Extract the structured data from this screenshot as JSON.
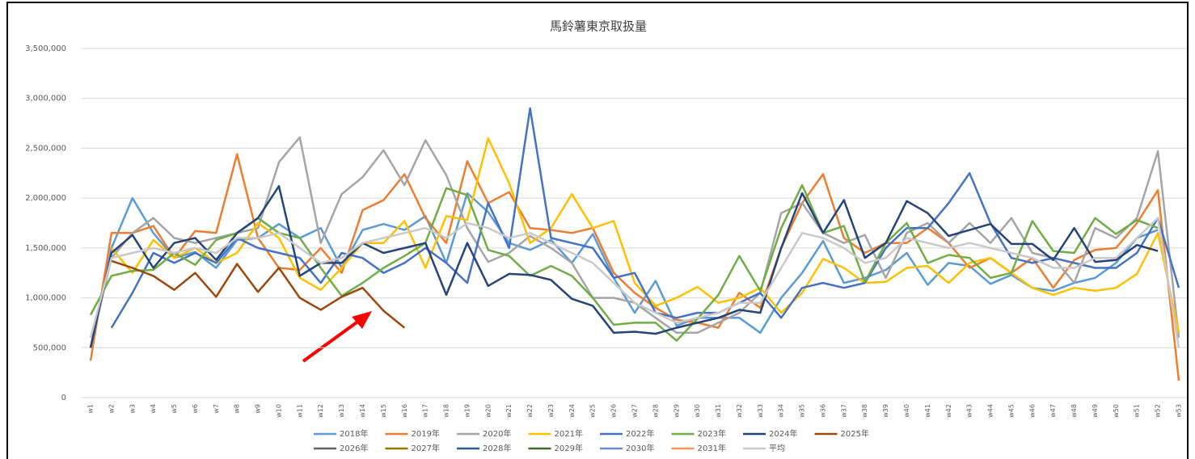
{
  "chart_data": {
    "type": "line",
    "title": "馬鈴薯東京取扱量",
    "categories": [
      "w1",
      "w2",
      "w3",
      "w4",
      "w5",
      "w6",
      "w7",
      "w8",
      "w9",
      "w10",
      "w11",
      "w12",
      "w13",
      "w14",
      "w15",
      "w16",
      "w17",
      "w18",
      "w19",
      "w20",
      "w21",
      "w22",
      "w23",
      "w24",
      "w25",
      "w26",
      "w27",
      "w28",
      "w29",
      "w30",
      "w31",
      "w32",
      "w33",
      "w34",
      "w35",
      "w36",
      "w37",
      "w38",
      "w39",
      "w40",
      "w41",
      "w42",
      "w43",
      "w44",
      "w45",
      "w46",
      "w47",
      "w48",
      "w49",
      "w50",
      "w51",
      "w52",
      "w53"
    ],
    "ylim": [
      0,
      3500000
    ],
    "yticks": [
      0,
      {
        "value": 500000,
        "label": "500,000"
      },
      {
        "value": 1000000,
        "label": "1,000,000"
      },
      {
        "value": 1500000,
        "label": "1,500,000"
      },
      {
        "value": 2000000,
        "label": "2,000,000"
      },
      {
        "value": 2500000,
        "label": "2,500,000"
      },
      {
        "value": 3000000,
        "label": "3,000,000"
      },
      {
        "value": 3500000,
        "label": "3,500,000"
      }
    ],
    "grid": true,
    "legend": "bottom",
    "series": [
      {
        "name": "2018年",
        "color": "#5b9bd5",
        "values": [
          500000,
          1500000,
          2000000,
          1650000,
          1400000,
          1460000,
          1300000,
          1580000,
          1600000,
          1740000,
          1600000,
          1700000,
          1300000,
          1680000,
          1740000,
          1680000,
          1820000,
          1350000,
          2050000,
          1860000,
          1550000,
          1480000,
          1580000,
          1350000,
          1640000,
          1200000,
          850000,
          1170000,
          720000,
          800000,
          800000,
          800000,
          650000,
          1000000,
          1250000,
          1570000,
          1150000,
          1200000,
          1280000,
          1450000,
          1130000,
          1350000,
          1320000,
          1140000,
          1230000,
          1100000,
          1070000,
          1150000,
          1200000,
          1350000,
          1600000,
          1680000,
          null
        ]
      },
      {
        "name": "2019年",
        "color": "#ed7d31",
        "values": [
          370000,
          1650000,
          1650000,
          1720000,
          1400000,
          1670000,
          1650000,
          2440000,
          1600000,
          1300000,
          1280000,
          1500000,
          1250000,
          1880000,
          1980000,
          2240000,
          1800000,
          1550000,
          2370000,
          1950000,
          2060000,
          1700000,
          1680000,
          1650000,
          1700000,
          1250000,
          1050000,
          900000,
          780000,
          750000,
          700000,
          1050000,
          900000,
          1500000,
          1950000,
          2240000,
          1600000,
          1450000,
          1550000,
          1550000,
          1700000,
          1550000,
          1300000,
          1400000,
          1250000,
          1400000,
          1100000,
          1380000,
          1480000,
          1500000,
          1750000,
          2080000,
          170000
        ]
      },
      {
        "name": "2020年",
        "color": "#a5a5a5",
        "values": [
          500000,
          1400000,
          1650000,
          1800000,
          1600000,
          1550000,
          1600000,
          1650000,
          1700000,
          2360000,
          2610000,
          1550000,
          2040000,
          2210000,
          2480000,
          2130000,
          2580000,
          2230000,
          1700000,
          1360000,
          1450000,
          1620000,
          1500000,
          1350000,
          1000000,
          1000000,
          950000,
          800000,
          650000,
          650000,
          750000,
          850000,
          1050000,
          1850000,
          1950000,
          1650000,
          1550000,
          1630000,
          1200000,
          1650000,
          1750000,
          1550000,
          1750000,
          1550000,
          1800000,
          1450000,
          1400000,
          1150000,
          1700000,
          1600000,
          1800000,
          2470000,
          600000
        ]
      },
      {
        "name": "2021年",
        "color": "#ffc000",
        "values": [
          null,
          1500000,
          1250000,
          1580000,
          1400000,
          1500000,
          1350000,
          1450000,
          1750000,
          1600000,
          1200000,
          1080000,
          1300000,
          1550000,
          1550000,
          1770000,
          1300000,
          1820000,
          1780000,
          2600000,
          2150000,
          1550000,
          1700000,
          2040000,
          1700000,
          1770000,
          1150000,
          920000,
          1000000,
          1110000,
          950000,
          1000000,
          1100000,
          850000,
          1050000,
          1390000,
          1300000,
          1150000,
          1160000,
          1300000,
          1320000,
          1150000,
          1350000,
          1400000,
          1250000,
          1100000,
          1030000,
          1100000,
          1070000,
          1100000,
          1240000,
          1650000,
          650000
        ]
      },
      {
        "name": "2022年",
        "color": "#4472c4",
        "values": [
          null,
          700000,
          1050000,
          1450000,
          1350000,
          1450000,
          1350000,
          1600000,
          1500000,
          1450000,
          1400000,
          1150000,
          1450000,
          1400000,
          1250000,
          1350000,
          1500000,
          1350000,
          1150000,
          1950000,
          1500000,
          2900000,
          1600000,
          1550000,
          1500000,
          1200000,
          1250000,
          850000,
          800000,
          850000,
          850000,
          950000,
          1050000,
          800000,
          1100000,
          1150000,
          1100000,
          1150000,
          1500000,
          1700000,
          1700000,
          1950000,
          2250000,
          1750000,
          1400000,
          1350000,
          1400000,
          1350000,
          1300000,
          1300000,
          1450000,
          1800000,
          1100000
        ]
      },
      {
        "name": "2023年",
        "color": "#70ad47",
        "values": [
          830000,
          1220000,
          1270000,
          1280000,
          1450000,
          1330000,
          1580000,
          1650000,
          1800000,
          1650000,
          1600000,
          1300000,
          1020000,
          1150000,
          1300000,
          1420000,
          1550000,
          2100000,
          2030000,
          1480000,
          1420000,
          1220000,
          1320000,
          1220000,
          1000000,
          730000,
          750000,
          750000,
          570000,
          790000,
          1030000,
          1420000,
          1070000,
          1700000,
          2130000,
          1650000,
          1720000,
          1160000,
          1550000,
          1750000,
          1350000,
          1430000,
          1400000,
          1200000,
          1250000,
          1770000,
          1470000,
          1450000,
          1800000,
          1640000,
          1780000,
          1700000,
          null
        ]
      },
      {
        "name": "2024年",
        "color": "#264478",
        "values": [
          500000,
          1450000,
          1630000,
          1300000,
          1550000,
          1600000,
          1380000,
          1650000,
          1800000,
          2120000,
          1220000,
          1350000,
          1350000,
          1550000,
          1450000,
          1500000,
          1550000,
          1030000,
          1550000,
          1120000,
          1240000,
          1230000,
          1180000,
          990000,
          920000,
          650000,
          660000,
          640000,
          700000,
          750000,
          800000,
          880000,
          850000,
          1500000,
          2050000,
          1650000,
          1980000,
          1400000,
          1550000,
          1970000,
          1850000,
          1620000,
          1680000,
          1740000,
          1540000,
          1540000,
          1380000,
          1700000,
          1360000,
          1380000,
          1530000,
          1470000,
          null
        ]
      },
      {
        "name": "2025年",
        "color": "#9e480e",
        "values": [
          null,
          1370000,
          1300000,
          1220000,
          1080000,
          1250000,
          1010000,
          1340000,
          1060000,
          1300000,
          1000000,
          880000,
          1010000,
          1100000,
          870000,
          700000,
          null,
          null,
          null,
          null,
          null,
          null,
          null,
          null,
          null,
          null,
          null,
          null,
          null,
          null,
          null,
          null,
          null,
          null,
          null,
          null,
          null,
          null,
          null,
          null,
          null,
          null,
          null,
          null,
          null,
          null,
          null,
          null,
          null,
          null,
          null,
          null,
          null
        ]
      },
      {
        "name": "2026年",
        "color": "#636363",
        "values": [
          null,
          null,
          null,
          null,
          null,
          null,
          null,
          null,
          null,
          null,
          null,
          null,
          null,
          null,
          null,
          null,
          null,
          null,
          null,
          null,
          null,
          null,
          null,
          null,
          null,
          null,
          null,
          null,
          null,
          null,
          null,
          null,
          null,
          null,
          null,
          null,
          null,
          null,
          null,
          null,
          null,
          null,
          null,
          null,
          null,
          null,
          null,
          null,
          null,
          null,
          null,
          null,
          null
        ]
      },
      {
        "name": "2027年",
        "color": "#997300",
        "values": [
          null,
          null,
          null,
          null,
          null,
          null,
          null,
          null,
          null,
          null,
          null,
          null,
          null,
          null,
          null,
          null,
          null,
          null,
          null,
          null,
          null,
          null,
          null,
          null,
          null,
          null,
          null,
          null,
          null,
          null,
          null,
          null,
          null,
          null,
          null,
          null,
          null,
          null,
          null,
          null,
          null,
          null,
          null,
          null,
          null,
          null,
          null,
          null,
          null,
          null,
          null,
          null,
          null
        ]
      },
      {
        "name": "2028年",
        "color": "#255e91",
        "values": [
          null,
          null,
          null,
          null,
          null,
          null,
          null,
          null,
          null,
          null,
          null,
          null,
          null,
          null,
          null,
          null,
          null,
          null,
          null,
          null,
          null,
          null,
          null,
          null,
          null,
          null,
          null,
          null,
          null,
          null,
          null,
          null,
          null,
          null,
          null,
          null,
          null,
          null,
          null,
          null,
          null,
          null,
          null,
          null,
          null,
          null,
          null,
          null,
          null,
          null,
          null,
          null,
          null
        ]
      },
      {
        "name": "2029年",
        "color": "#43682b",
        "values": [
          null,
          null,
          null,
          null,
          null,
          null,
          null,
          null,
          null,
          null,
          null,
          null,
          null,
          null,
          null,
          null,
          null,
          null,
          null,
          null,
          null,
          null,
          null,
          null,
          null,
          null,
          null,
          null,
          null,
          null,
          null,
          null,
          null,
          null,
          null,
          null,
          null,
          null,
          null,
          null,
          null,
          null,
          null,
          null,
          null,
          null,
          null,
          null,
          null,
          null,
          null,
          null,
          null
        ]
      },
      {
        "name": "2030年",
        "color": "#698ed0",
        "values": [
          null,
          null,
          null,
          null,
          null,
          null,
          null,
          null,
          null,
          null,
          null,
          null,
          null,
          null,
          null,
          null,
          null,
          null,
          null,
          null,
          null,
          null,
          null,
          null,
          null,
          null,
          null,
          null,
          null,
          null,
          null,
          null,
          null,
          null,
          null,
          null,
          null,
          null,
          null,
          null,
          null,
          null,
          null,
          null,
          null,
          null,
          null,
          null,
          null,
          null,
          null,
          null,
          null
        ]
      },
      {
        "name": "2031年",
        "color": "#f1975a",
        "values": [
          null,
          null,
          null,
          null,
          null,
          null,
          null,
          null,
          null,
          null,
          null,
          null,
          null,
          null,
          null,
          null,
          null,
          null,
          null,
          null,
          null,
          null,
          null,
          null,
          null,
          null,
          null,
          null,
          null,
          null,
          null,
          null,
          null,
          null,
          null,
          null,
          null,
          null,
          null,
          null,
          null,
          null,
          null,
          null,
          null,
          null,
          null,
          null,
          null,
          null,
          null,
          null,
          null
        ]
      },
      {
        "name": "平均",
        "color": "#c9c9c9",
        "values": [
          600000,
          1400000,
          1450000,
          1500000,
          1450000,
          1500000,
          1450000,
          1600000,
          1600000,
          1650000,
          1500000,
          1350000,
          1400000,
          1550000,
          1600000,
          1650000,
          1700000,
          1600000,
          1750000,
          1700000,
          1600000,
          1650000,
          1550000,
          1450000,
          1350000,
          1150000,
          950000,
          850000,
          750000,
          800000,
          850000,
          950000,
          950000,
          1300000,
          1650000,
          1600000,
          1500000,
          1350000,
          1400000,
          1600000,
          1550000,
          1500000,
          1550000,
          1500000,
          1450000,
          1400000,
          1300000,
          1300000,
          1400000,
          1400000,
          1600000,
          1800000,
          500000
        ]
      }
    ]
  }
}
